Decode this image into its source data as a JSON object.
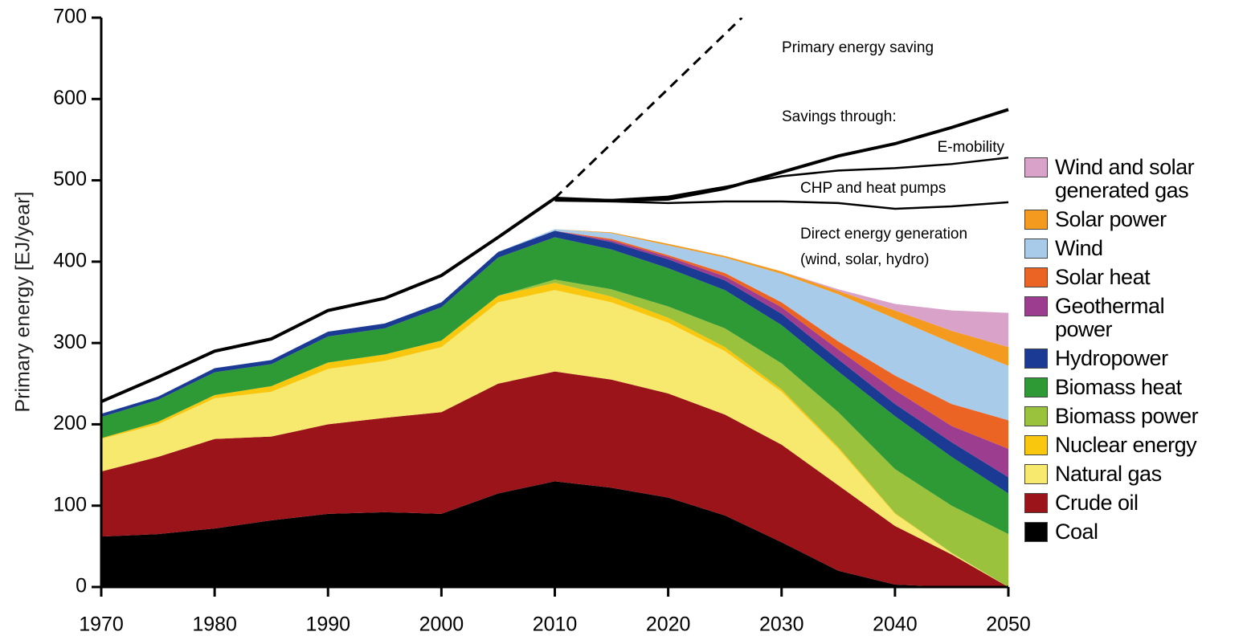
{
  "chart_data": {
    "type": "stacked-area",
    "y_label": "Primary energy [EJ/year]",
    "x": [
      1970,
      1975,
      1980,
      1985,
      1990,
      1995,
      2000,
      2005,
      2010,
      2015,
      2020,
      2025,
      2030,
      2035,
      2040,
      2045,
      2050
    ],
    "xlim": [
      1970,
      2050
    ],
    "xticks": [
      1970,
      1980,
      1990,
      2000,
      2010,
      2020,
      2030,
      2040,
      2050
    ],
    "ylim": [
      0,
      700
    ],
    "yticks": [
      0,
      100,
      200,
      300,
      400,
      500,
      600,
      700
    ],
    "series": [
      {
        "name": "Coal",
        "color": "#000000",
        "values": [
          62,
          65,
          72,
          82,
          90,
          92,
          90,
          115,
          130,
          122,
          110,
          88,
          55,
          20,
          3,
          0,
          0
        ]
      },
      {
        "name": "Crude oil",
        "color": "#9b1419",
        "values": [
          80,
          95,
          110,
          103,
          110,
          116,
          125,
          135,
          135,
          133,
          128,
          124,
          120,
          105,
          72,
          40,
          0
        ]
      },
      {
        "name": "Natural gas",
        "color": "#f7e86e",
        "values": [
          40,
          40,
          50,
          55,
          68,
          70,
          80,
          100,
          100,
          95,
          87,
          78,
          65,
          45,
          15,
          2,
          0
        ]
      },
      {
        "name": "Nuclear energy",
        "color": "#f9c80e",
        "values": [
          1,
          3,
          4,
          7,
          8,
          8,
          8,
          8,
          9,
          7,
          6,
          5,
          3,
          2,
          1,
          0,
          0
        ]
      },
      {
        "name": "Biomass power",
        "color": "#9bc23c",
        "values": [
          0,
          0,
          0,
          0,
          0,
          0,
          0,
          0,
          4,
          9,
          14,
          23,
          32,
          43,
          54,
          58,
          65
        ]
      },
      {
        "name": "Biomass heat",
        "color": "#2e9a35",
        "values": [
          26,
          27,
          28,
          27,
          32,
          32,
          41,
          47,
          52,
          49,
          47,
          47,
          47,
          50,
          65,
          60,
          50
        ]
      },
      {
        "name": "Hydropower",
        "color": "#1b3a93",
        "values": [
          4,
          4,
          5,
          5,
          6,
          6,
          6,
          7,
          8,
          9,
          11,
          12,
          14,
          15,
          15,
          18,
          20
        ]
      },
      {
        "name": "Geothermal power",
        "color": "#9c3d8f",
        "values": [
          0,
          0,
          0,
          0,
          0,
          0,
          0,
          0,
          0,
          2,
          3,
          5,
          8,
          12,
          17,
          20,
          35
        ]
      },
      {
        "name": "Solar heat",
        "color": "#ec6423",
        "values": [
          0,
          0,
          0,
          0,
          0,
          0,
          0,
          0,
          0,
          2,
          2,
          4,
          6,
          10,
          18,
          27,
          35
        ]
      },
      {
        "name": "Wind",
        "color": "#a7cbe9",
        "values": [
          0,
          0,
          0,
          0,
          0,
          0,
          0,
          0,
          2,
          7,
          12,
          19,
          35,
          58,
          70,
          75,
          67
        ]
      },
      {
        "name": "Solar power",
        "color": "#f39a1f",
        "values": [
          0,
          0,
          0,
          0,
          0,
          0,
          0,
          0,
          0,
          1,
          2,
          2,
          3,
          4,
          10,
          15,
          23
        ]
      },
      {
        "name": "Wind and solar generated gas",
        "color": "#d9a2c9",
        "values": [
          0,
          0,
          0,
          0,
          0,
          0,
          0,
          0,
          0,
          0,
          0,
          0,
          0,
          2,
          8,
          25,
          42
        ]
      }
    ],
    "lines": [
      {
        "values": [
          228,
          258,
          290,
          305,
          340,
          355,
          383,
          430,
          478,
          475,
          477,
          490,
          510,
          530,
          545,
          565,
          587
        ]
      },
      {
        "values": [
          null,
          null,
          null,
          null,
          null,
          null,
          null,
          null,
          477,
          476,
          480,
          492,
          505,
          512,
          515,
          520,
          528
        ]
      },
      {
        "values": [
          null,
          null,
          null,
          null,
          null,
          null,
          null,
          null,
          475,
          474,
          472,
          474,
          474,
          472,
          465,
          468,
          473
        ]
      }
    ],
    "projection": {
      "x": [
        2010,
        2026.5
      ],
      "values": [
        478,
        700
      ]
    },
    "annotations": [
      "Primary energy saving",
      "Savings through:",
      "E-mobility",
      "CHP and heat pumps",
      "Direct energy generation",
      "(wind, solar, hydro)"
    ]
  }
}
